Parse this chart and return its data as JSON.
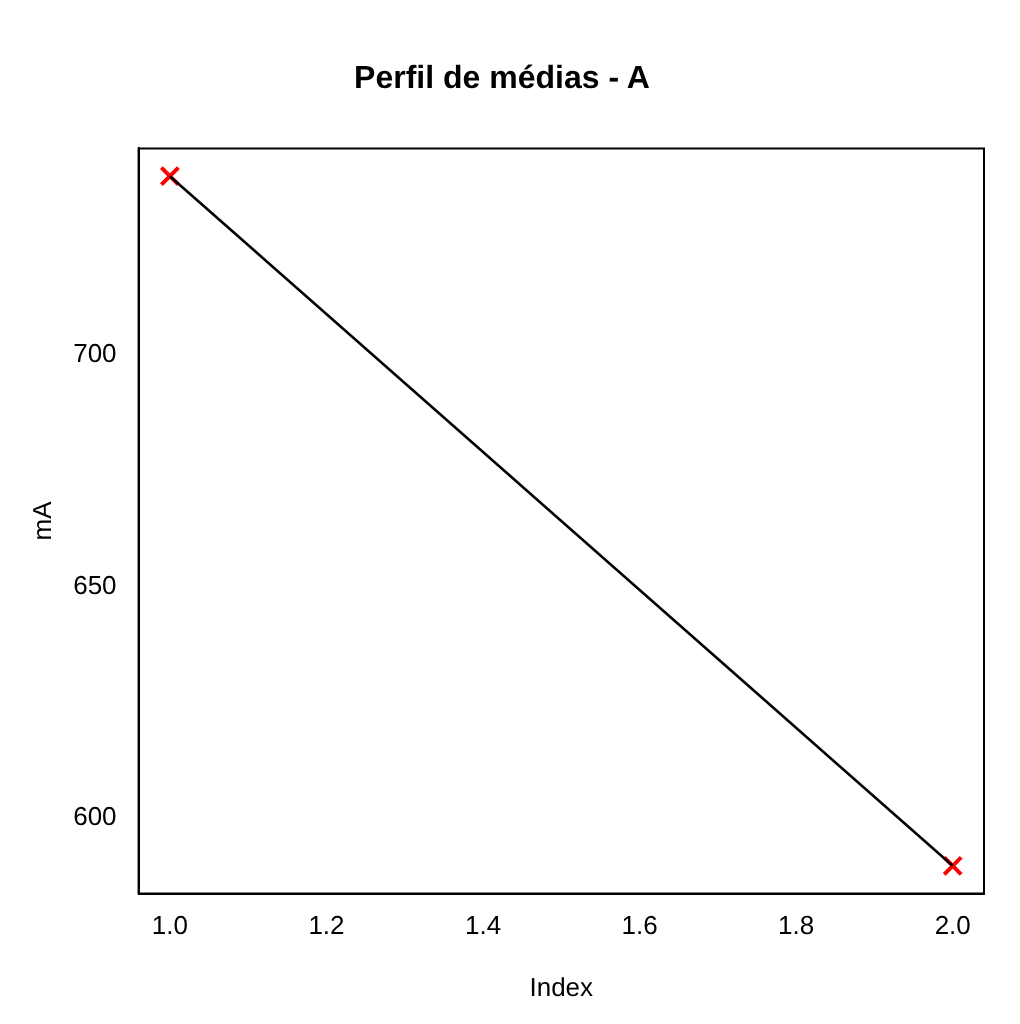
{
  "chart_data": {
    "type": "line",
    "title": "Perfil de médias - A",
    "xlabel": "Index",
    "ylabel": "mA",
    "xlim": [
      0.96,
      2.04
    ],
    "xticks": [
      {
        "value": 1,
        "label": "1.0"
      },
      {
        "value": 1.2,
        "label": "1.2"
      },
      {
        "value": 1.4,
        "label": "1.4"
      },
      {
        "value": 1.6,
        "label": "1.6"
      },
      {
        "value": 1.8,
        "label": "1.8"
      },
      {
        "value": 2,
        "label": "2.0"
      }
    ],
    "x": [
      1,
      2
    ],
    "ylim": [
      583.7,
      744.6
    ],
    "yticks": [
      600,
      650,
      700
    ],
    "grid": false,
    "legend": false,
    "series": [
      {
        "color": "#000000",
        "values": [
          738.6,
          589.7
        ],
        "marker": "none"
      },
      {
        "type": "scatter",
        "color": "#ff0000",
        "values": [
          738.6,
          589.7
        ],
        "marker": "cross"
      }
    ]
  }
}
